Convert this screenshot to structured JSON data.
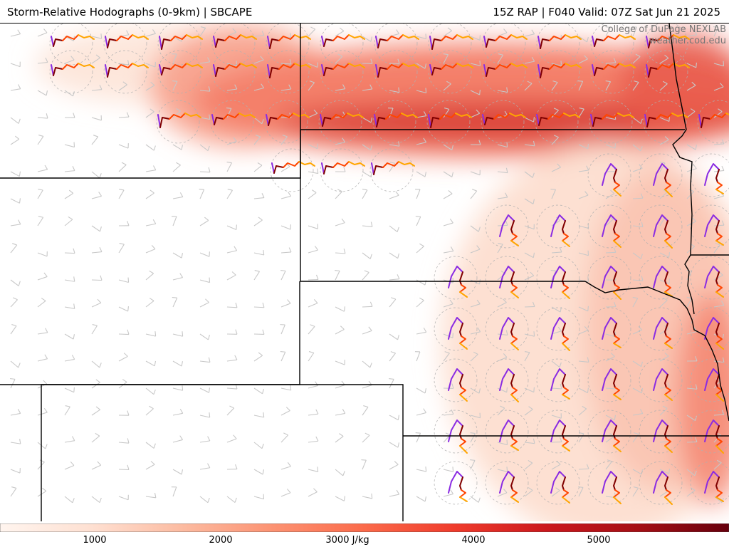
{
  "header": {
    "left_title": "Storm-Relative Hodographs (0-9km) | SBCAPE",
    "right_title": "15Z RAP | F040 Valid: 07Z Sat Jun 21 2025"
  },
  "credits": {
    "line1": "College of DuPage NEXLAB",
    "line2": "weather.cod.edu"
  },
  "colorbar": {
    "ticks": [
      "1000",
      "2000",
      "3000 J/kg",
      "4000",
      "5000"
    ],
    "colors": [
      "#fff5ef",
      "#fee0d2",
      "#fcbba1",
      "#fc9272",
      "#fb6a4a",
      "#ef3b2c",
      "#cb181d",
      "#a50f15",
      "#67000d"
    ]
  },
  "hodograph_colors": {
    "layer_0_1km": "#800000",
    "layer_1_3km": "#ff4500",
    "layer_3_6km": "#ffa500",
    "layer_6_9km": "#8a2be2"
  },
  "map_colors": {
    "cape_low": "#fde0d2",
    "cape_mid": "#f4806a",
    "cape_high": "#d73a31",
    "barb": "#c8c8c8",
    "border": "#000000"
  }
}
